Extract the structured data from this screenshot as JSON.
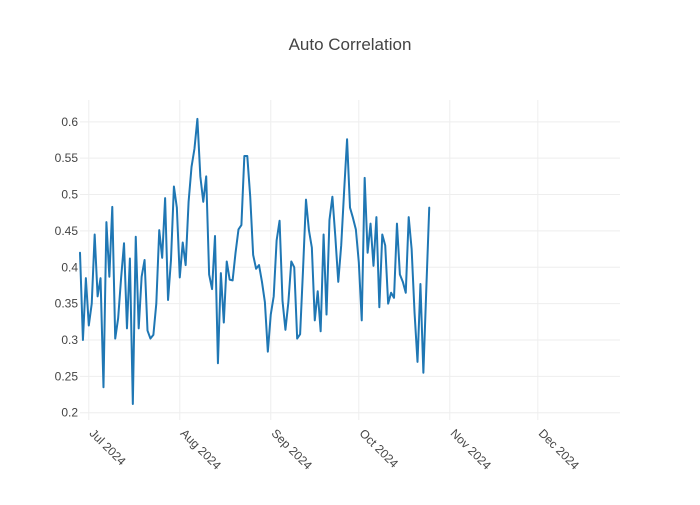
{
  "chart_data": {
    "type": "line",
    "title": "Auto Correlation",
    "xlabel": "",
    "ylabel": "",
    "xlim": [
      "2024-06-28",
      "2024-12-29"
    ],
    "ylim": [
      0.19,
      0.63
    ],
    "grid": true,
    "legend": "none",
    "x_ticks": [
      {
        "date": "2024-07-01",
        "label": "Jul 2024"
      },
      {
        "date": "2024-08-01",
        "label": "Aug 2024"
      },
      {
        "date": "2024-09-01",
        "label": "Sep 2024"
      },
      {
        "date": "2024-10-01",
        "label": "Oct 2024"
      },
      {
        "date": "2024-11-01",
        "label": "Nov 2024"
      },
      {
        "date": "2024-12-01",
        "label": "Dec 2024"
      }
    ],
    "y_ticks": [
      {
        "value": 0.2,
        "label": "0.2"
      },
      {
        "value": 0.25,
        "label": "0.25"
      },
      {
        "value": 0.3,
        "label": "0.3"
      },
      {
        "value": 0.35,
        "label": "0.35"
      },
      {
        "value": 0.4,
        "label": "0.4"
      },
      {
        "value": 0.45,
        "label": "0.45"
      },
      {
        "value": 0.5,
        "label": "0.5"
      },
      {
        "value": 0.55,
        "label": "0.55"
      },
      {
        "value": 0.6,
        "label": "0.6"
      }
    ],
    "series": [
      {
        "color": "#1f77b4",
        "points": [
          [
            "2024-06-28",
            0.42
          ],
          [
            "2024-06-29",
            0.3
          ],
          [
            "2024-06-30",
            0.385
          ],
          [
            "2024-07-01",
            0.32
          ],
          [
            "2024-07-02",
            0.35
          ],
          [
            "2024-07-03",
            0.445
          ],
          [
            "2024-07-04",
            0.36
          ],
          [
            "2024-07-05",
            0.385
          ],
          [
            "2024-07-06",
            0.235
          ],
          [
            "2024-07-07",
            0.462
          ],
          [
            "2024-07-08",
            0.387
          ],
          [
            "2024-07-09",
            0.483
          ],
          [
            "2024-07-10",
            0.302
          ],
          [
            "2024-07-11",
            0.33
          ],
          [
            "2024-07-12",
            0.385
          ],
          [
            "2024-07-13",
            0.433
          ],
          [
            "2024-07-14",
            0.316
          ],
          [
            "2024-07-15",
            0.412
          ],
          [
            "2024-07-16",
            0.212
          ],
          [
            "2024-07-17",
            0.442
          ],
          [
            "2024-07-18",
            0.316
          ],
          [
            "2024-07-19",
            0.387
          ],
          [
            "2024-07-20",
            0.41
          ],
          [
            "2024-07-21",
            0.313
          ],
          [
            "2024-07-22",
            0.302
          ],
          [
            "2024-07-23",
            0.307
          ],
          [
            "2024-07-24",
            0.35
          ],
          [
            "2024-07-25",
            0.451
          ],
          [
            "2024-07-26",
            0.413
          ],
          [
            "2024-07-27",
            0.495
          ],
          [
            "2024-07-28",
            0.355
          ],
          [
            "2024-07-29",
            0.41
          ],
          [
            "2024-07-30",
            0.511
          ],
          [
            "2024-07-31",
            0.482
          ],
          [
            "2024-08-01",
            0.386
          ],
          [
            "2024-08-02",
            0.434
          ],
          [
            "2024-08-03",
            0.403
          ],
          [
            "2024-08-04",
            0.49
          ],
          [
            "2024-08-05",
            0.538
          ],
          [
            "2024-08-06",
            0.563
          ],
          [
            "2024-08-07",
            0.604
          ],
          [
            "2024-08-08",
            0.525
          ],
          [
            "2024-08-09",
            0.49
          ],
          [
            "2024-08-10",
            0.525
          ],
          [
            "2024-08-11",
            0.39
          ],
          [
            "2024-08-12",
            0.37
          ],
          [
            "2024-08-13",
            0.443
          ],
          [
            "2024-08-14",
            0.268
          ],
          [
            "2024-08-15",
            0.392
          ],
          [
            "2024-08-16",
            0.324
          ],
          [
            "2024-08-17",
            0.408
          ],
          [
            "2024-08-18",
            0.383
          ],
          [
            "2024-08-19",
            0.382
          ],
          [
            "2024-08-20",
            0.42
          ],
          [
            "2024-08-21",
            0.452
          ],
          [
            "2024-08-22",
            0.458
          ],
          [
            "2024-08-23",
            0.553
          ],
          [
            "2024-08-24",
            0.553
          ],
          [
            "2024-08-25",
            0.497
          ],
          [
            "2024-08-26",
            0.417
          ],
          [
            "2024-08-27",
            0.398
          ],
          [
            "2024-08-28",
            0.403
          ],
          [
            "2024-08-29",
            0.38
          ],
          [
            "2024-08-30",
            0.352
          ],
          [
            "2024-08-31",
            0.284
          ],
          [
            "2024-09-01",
            0.335
          ],
          [
            "2024-09-02",
            0.36
          ],
          [
            "2024-09-03",
            0.437
          ],
          [
            "2024-09-04",
            0.464
          ],
          [
            "2024-09-05",
            0.354
          ],
          [
            "2024-09-06",
            0.314
          ],
          [
            "2024-09-07",
            0.352
          ],
          [
            "2024-09-08",
            0.408
          ],
          [
            "2024-09-09",
            0.4
          ],
          [
            "2024-09-10",
            0.302
          ],
          [
            "2024-09-11",
            0.308
          ],
          [
            "2024-09-12",
            0.397
          ],
          [
            "2024-09-13",
            0.493
          ],
          [
            "2024-09-14",
            0.451
          ],
          [
            "2024-09-15",
            0.427
          ],
          [
            "2024-09-16",
            0.327
          ],
          [
            "2024-09-17",
            0.367
          ],
          [
            "2024-09-18",
            0.312
          ],
          [
            "2024-09-19",
            0.445
          ],
          [
            "2024-09-20",
            0.335
          ],
          [
            "2024-09-21",
            0.465
          ],
          [
            "2024-09-22",
            0.497
          ],
          [
            "2024-09-23",
            0.442
          ],
          [
            "2024-09-24",
            0.38
          ],
          [
            "2024-09-25",
            0.43
          ],
          [
            "2024-09-26",
            0.505
          ],
          [
            "2024-09-27",
            0.576
          ],
          [
            "2024-09-28",
            0.482
          ],
          [
            "2024-09-29",
            0.468
          ],
          [
            "2024-09-30",
            0.452
          ],
          [
            "2024-10-01",
            0.407
          ],
          [
            "2024-10-02",
            0.327
          ],
          [
            "2024-10-03",
            0.523
          ],
          [
            "2024-10-04",
            0.42
          ],
          [
            "2024-10-05",
            0.46
          ],
          [
            "2024-10-06",
            0.402
          ],
          [
            "2024-10-07",
            0.469
          ],
          [
            "2024-10-08",
            0.345
          ],
          [
            "2024-10-09",
            0.445
          ],
          [
            "2024-10-10",
            0.43
          ],
          [
            "2024-10-11",
            0.35
          ],
          [
            "2024-10-12",
            0.365
          ],
          [
            "2024-10-13",
            0.358
          ],
          [
            "2024-10-14",
            0.46
          ],
          [
            "2024-10-15",
            0.39
          ],
          [
            "2024-10-16",
            0.38
          ],
          [
            "2024-10-17",
            0.365
          ],
          [
            "2024-10-18",
            0.469
          ],
          [
            "2024-10-19",
            0.425
          ],
          [
            "2024-10-20",
            0.337
          ],
          [
            "2024-10-21",
            0.27
          ],
          [
            "2024-10-22",
            0.377
          ],
          [
            "2024-10-23",
            0.255
          ],
          [
            "2024-10-24",
            0.37
          ],
          [
            "2024-10-25",
            0.482
          ]
        ]
      }
    ]
  }
}
